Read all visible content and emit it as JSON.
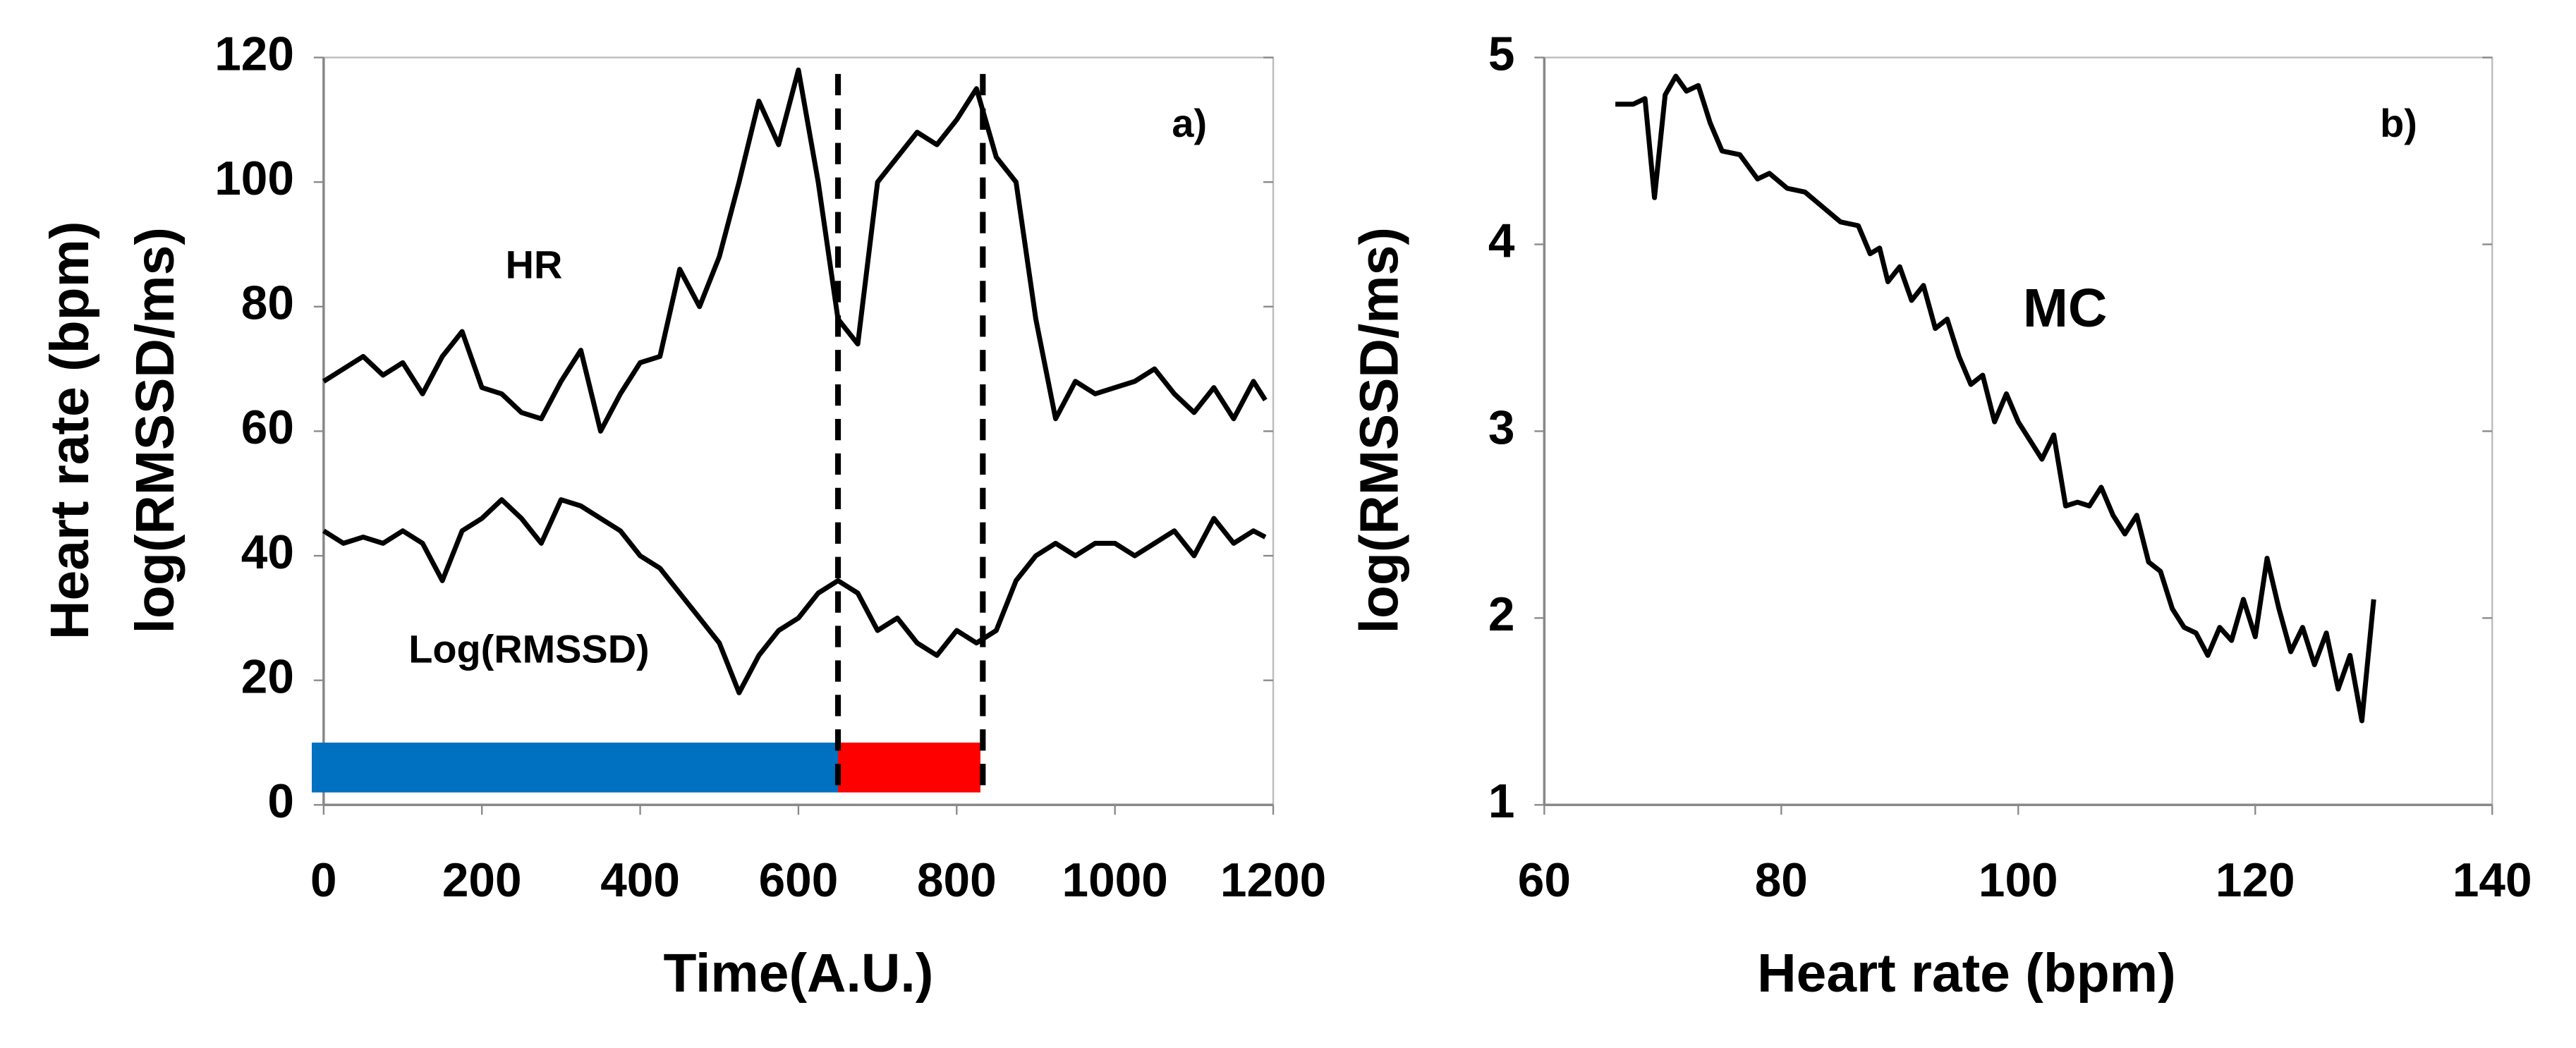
{
  "chart_data": [
    {
      "type": "line",
      "x_label": "Time(A.U.)",
      "y_label": [
        "Heart rate (bpm)",
        "log(RMSSD/ms)"
      ],
      "annotations": [
        "HR",
        "Log(RMSSD)",
        "a)"
      ],
      "xlim": [
        0,
        1200
      ],
      "xticks": [
        0,
        200,
        400,
        600,
        800,
        1000,
        1200
      ],
      "ylim": [
        0,
        120
      ],
      "yticks": [
        0,
        20,
        40,
        60,
        80,
        100,
        120
      ],
      "x": [
        0,
        25,
        50,
        75,
        100,
        125,
        150,
        175,
        200,
        225,
        250,
        275,
        300,
        325,
        350,
        375,
        400,
        425,
        450,
        475,
        500,
        525,
        550,
        575,
        600,
        625,
        650,
        675,
        700,
        725,
        750,
        775,
        800,
        825,
        850,
        875,
        900,
        925,
        950,
        975,
        1000,
        1025,
        1050,
        1075,
        1100,
        1125,
        1150,
        1175,
        1190
      ],
      "series": [
        {
          "color": "#000000",
          "values": [
            68,
            70,
            72,
            69,
            71,
            66,
            72,
            76,
            67,
            66,
            63,
            62,
            68,
            73,
            60,
            66,
            71,
            72,
            86,
            80,
            88,
            100,
            113,
            106,
            118,
            100,
            78,
            74,
            100,
            104,
            108,
            106,
            110,
            115,
            104,
            100,
            78,
            62,
            68,
            66,
            67,
            68,
            70,
            66,
            63,
            67,
            62,
            68,
            65
          ]
        },
        {
          "color": "#000000",
          "values": [
            44,
            42,
            43,
            42,
            44,
            42,
            36,
            44,
            46,
            49,
            46,
            42,
            49,
            48,
            46,
            44,
            40,
            38,
            34,
            30,
            26,
            18,
            24,
            28,
            30,
            34,
            36,
            34,
            28,
            30,
            26,
            24,
            28,
            26,
            28,
            36,
            40,
            42,
            40,
            42,
            42,
            40,
            42,
            44,
            40,
            46,
            42,
            44,
            43
          ]
        }
      ],
      "vlines": [
        650,
        833
      ],
      "spans": [
        {
          "start": -15,
          "end": 650,
          "ymin": 2,
          "ymax": 10,
          "color": "#0070c0"
        },
        {
          "start": 650,
          "end": 830,
          "ymin": 2,
          "ymax": 10,
          "color": "#ff0000"
        }
      ]
    },
    {
      "type": "line",
      "x_label": "Heart rate (bpm)",
      "y_label": [
        "log(RMSSD/ms)"
      ],
      "annotations": [
        "MC",
        "b)"
      ],
      "xlim": [
        60,
        140
      ],
      "xticks": [
        60,
        80,
        100,
        120,
        140
      ],
      "ylim": [
        1,
        5
      ],
      "yticks": [
        1,
        2,
        3,
        4,
        5
      ],
      "x": [
        66,
        67.5,
        68.5,
        69.3,
        70.2,
        71.1,
        72,
        73,
        74,
        75,
        76.5,
        78,
        79,
        80.5,
        82,
        83.5,
        85,
        86.5,
        87.5,
        88.3,
        89,
        90,
        91,
        92,
        93,
        94,
        95,
        96,
        97,
        98,
        99,
        100,
        101,
        102,
        103,
        104,
        105,
        106,
        107,
        108,
        109,
        110,
        111,
        112,
        113,
        114,
        115,
        116,
        117,
        118,
        119,
        120,
        121,
        122,
        123,
        124,
        125,
        126,
        127,
        128,
        129,
        130
      ],
      "series": [
        {
          "color": "#000000",
          "values": [
            4.75,
            4.75,
            4.78,
            4.25,
            4.8,
            4.9,
            4.82,
            4.85,
            4.65,
            4.5,
            4.48,
            4.35,
            4.38,
            4.3,
            4.28,
            4.2,
            4.12,
            4.1,
            3.95,
            3.98,
            3.8,
            3.88,
            3.7,
            3.78,
            3.55,
            3.6,
            3.4,
            3.25,
            3.3,
            3.05,
            3.2,
            3.05,
            2.95,
            2.85,
            2.98,
            2.6,
            2.62,
            2.6,
            2.7,
            2.55,
            2.45,
            2.55,
            2.3,
            2.25,
            2.05,
            1.95,
            1.92,
            1.8,
            1.95,
            1.88,
            2.1,
            1.9,
            2.32,
            2.05,
            1.82,
            1.95,
            1.75,
            1.92,
            1.62,
            1.8,
            1.45,
            2.1
          ]
        }
      ]
    }
  ]
}
